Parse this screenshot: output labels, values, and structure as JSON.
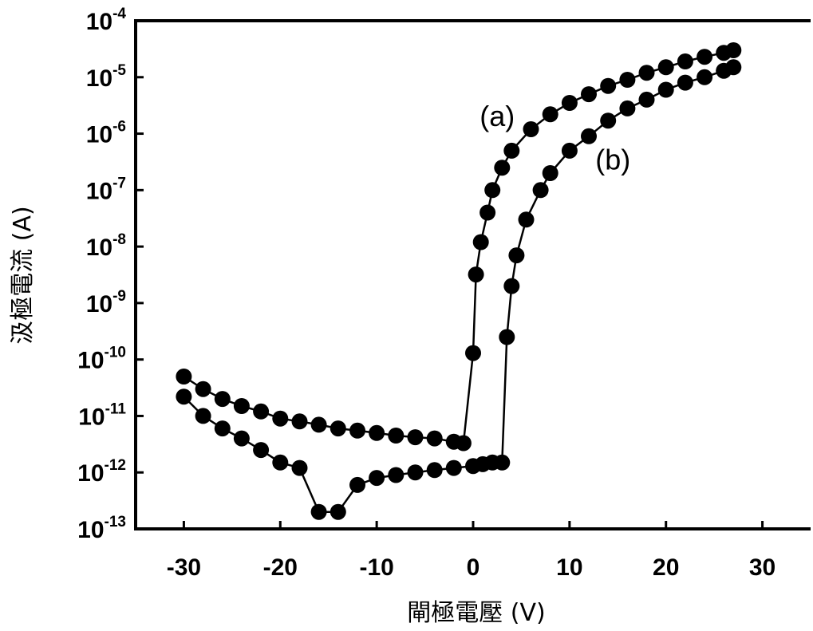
{
  "chart_data": {
    "type": "scatter",
    "title": "",
    "xlabel": "閘極電壓 (V)",
    "ylabel": "汲極電流 (A)",
    "xlim": [
      -35,
      35
    ],
    "ylim_log10": [
      -13,
      -4
    ],
    "yscale": "log",
    "grid": false,
    "legend": "none",
    "x_ticks": [
      -30,
      -20,
      -10,
      0,
      10,
      20,
      30
    ],
    "x_tick_labels": [
      "-30",
      "-20",
      "-10",
      "0",
      "10",
      "20",
      "30"
    ],
    "y_ticks_exponent": [
      -4,
      -5,
      -6,
      -7,
      -8,
      -9,
      -10,
      -11,
      -12,
      -13
    ],
    "y_tick_base": "10",
    "y_tick_exponents": [
      "-4",
      "-5",
      "-6",
      "-7",
      "-8",
      "-9",
      "-10",
      "-11",
      "-12",
      "-13"
    ],
    "series": [
      {
        "name": "(a)",
        "color": "#000000",
        "x": [
          -30,
          -28,
          -26,
          -24,
          -22,
          -20,
          -18,
          -16,
          -14,
          -12,
          -10,
          -8,
          -6,
          -4,
          -2,
          -1,
          0,
          0.3,
          0.8,
          1.5,
          2,
          3,
          4,
          6,
          8,
          10,
          12,
          14,
          16,
          18,
          20,
          22,
          24,
          26,
          27
        ],
        "y": [
          5e-11,
          3e-11,
          2e-11,
          1.5e-11,
          1.2e-11,
          9e-12,
          8e-12,
          7e-12,
          6e-12,
          5.5e-12,
          5e-12,
          4.5e-12,
          4.2e-12,
          4e-12,
          3.5e-12,
          3.3e-12,
          1.3e-10,
          3.2e-09,
          1.2e-08,
          4e-08,
          1e-07,
          2.5e-07,
          5e-07,
          1.2e-06,
          2.2e-06,
          3.5e-06,
          5e-06,
          7e-06,
          9e-06,
          1.2e-05,
          1.5e-05,
          1.9e-05,
          2.3e-05,
          2.7e-05,
          3e-05
        ]
      },
      {
        "name": "(b)",
        "color": "#000000",
        "x": [
          -30,
          -28,
          -26,
          -24,
          -22,
          -20,
          -18,
          -16,
          -14,
          -12,
          -10,
          -8,
          -6,
          -4,
          -2,
          0,
          1,
          2,
          3,
          3.5,
          4,
          4.5,
          5.5,
          7,
          8,
          10,
          12,
          14,
          16,
          18,
          20,
          22,
          24,
          26,
          27
        ],
        "y": [
          2.2e-11,
          1e-11,
          6e-12,
          4e-12,
          2.5e-12,
          1.5e-12,
          1.2e-12,
          2e-13,
          2e-13,
          6e-13,
          8e-13,
          9e-13,
          1e-12,
          1.1e-12,
          1.2e-12,
          1.3e-12,
          1.4e-12,
          1.5e-12,
          1.5e-12,
          2.5e-10,
          2e-09,
          7e-09,
          3e-08,
          1e-07,
          2e-07,
          5e-07,
          9e-07,
          1.7e-06,
          2.8e-06,
          4e-06,
          6e-06,
          8e-06,
          1e-05,
          1.3e-05,
          1.5e-05
        ]
      }
    ],
    "annotations": [
      {
        "text": "(a)",
        "x": 2.5,
        "y": 2e-06
      },
      {
        "text": "(b)",
        "x": 14.5,
        "y": 3.4e-07
      }
    ]
  }
}
